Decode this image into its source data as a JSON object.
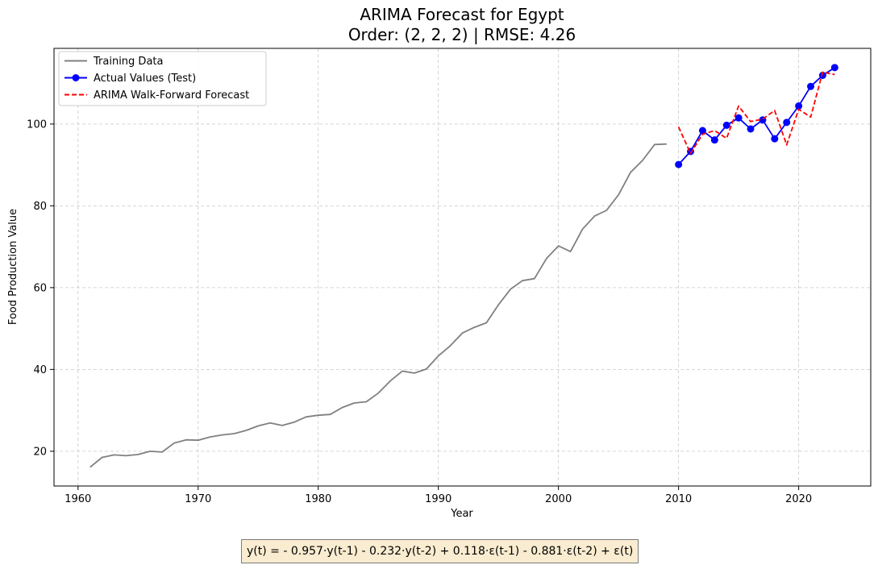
{
  "chart_data": {
    "type": "line",
    "title_line1": "ARIMA Forecast for Egypt",
    "title_line2": "Order: (2, 2, 2) | RMSE: 4.26",
    "xlabel": "Year",
    "ylabel": "Food Production Value",
    "xlim": [
      1958,
      2026
    ],
    "ylim": [
      11.5,
      118.5
    ],
    "xticks": [
      1960,
      1970,
      1980,
      1990,
      2000,
      2010,
      2020
    ],
    "yticks": [
      20,
      40,
      60,
      80,
      100
    ],
    "grid": true,
    "legend_position": "top-left",
    "series": [
      {
        "name": "Training Data",
        "color": "#808080",
        "style": "solid",
        "marker": "none",
        "x": [
          1961,
          1962,
          1963,
          1964,
          1965,
          1966,
          1967,
          1968,
          1969,
          1970,
          1971,
          1972,
          1973,
          1974,
          1975,
          1976,
          1977,
          1978,
          1979,
          1980,
          1981,
          1982,
          1983,
          1984,
          1985,
          1986,
          1987,
          1988,
          1989,
          1990,
          1991,
          1992,
          1993,
          1994,
          1995,
          1996,
          1997,
          1998,
          1999,
          2000,
          2001,
          2002,
          2003,
          2004,
          2005,
          2006,
          2007,
          2008,
          2009
        ],
        "y": [
          16.1,
          18.5,
          19.1,
          18.9,
          19.2,
          20.0,
          19.8,
          22.0,
          22.8,
          22.7,
          23.5,
          24.0,
          24.3,
          25.1,
          26.2,
          26.9,
          26.3,
          27.1,
          28.4,
          28.8,
          29.0,
          30.7,
          31.8,
          32.1,
          34.2,
          37.2,
          39.6,
          39.1,
          40.1,
          43.3,
          45.8,
          48.9,
          50.3,
          51.4,
          55.8,
          59.6,
          61.7,
          62.2,
          67.1,
          70.2,
          68.8,
          74.3,
          77.5,
          78.9,
          82.7,
          88.2,
          91.1,
          95.0,
          95.1
        ]
      },
      {
        "name": "Actual Values (Test)",
        "color": "#0000ff",
        "style": "solid",
        "marker": "circle",
        "x": [
          2010,
          2011,
          2012,
          2013,
          2014,
          2015,
          2016,
          2017,
          2018,
          2019,
          2020,
          2021,
          2022,
          2023
        ],
        "y": [
          90.1,
          93.3,
          98.4,
          96.1,
          99.7,
          101.5,
          98.8,
          101.0,
          96.4,
          100.4,
          104.4,
          109.2,
          111.9,
          113.8
        ]
      },
      {
        "name": "ARIMA Walk-Forward Forecast",
        "color": "#ff0000",
        "style": "dashed",
        "marker": "none",
        "x": [
          2010,
          2011,
          2012,
          2013,
          2014,
          2015,
          2016,
          2017,
          2018,
          2019,
          2020,
          2021,
          2022,
          2023
        ],
        "y": [
          99.3,
          92.8,
          97.5,
          98.4,
          96.5,
          104.4,
          100.6,
          101.2,
          103.3,
          94.9,
          103.6,
          101.7,
          112.7,
          112.1
        ]
      }
    ]
  },
  "formula": "y(t) = - 0.957·y(t-1) - 0.232·y(t-2) + 0.118·ε(t-1) - 0.881·ε(t-2) + ε(t)"
}
